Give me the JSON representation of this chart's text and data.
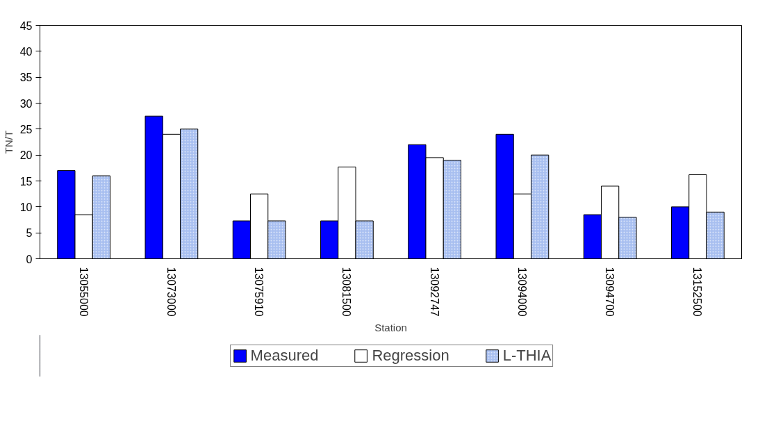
{
  "chart_data": {
    "type": "bar",
    "xlabel": "Station",
    "ylabel": "TN/T",
    "categories": [
      "13055000",
      "13073000",
      "13075910",
      "13081500",
      "13092747",
      "13094000",
      "13094700",
      "13152500"
    ],
    "series": [
      {
        "name": "Measured",
        "color": "#0000ff",
        "values": [
          17,
          27.5,
          7.3,
          7.3,
          22,
          24,
          8.5,
          10
        ]
      },
      {
        "name": "Regression",
        "color": "#ffffff",
        "values": [
          8.5,
          24,
          12.5,
          17.7,
          19.5,
          12.5,
          14,
          16.2
        ]
      },
      {
        "name": "L-THIA",
        "color": "#a8bff0",
        "values": [
          16,
          25,
          7.3,
          7.3,
          19,
          20,
          8,
          9
        ]
      }
    ],
    "ylim": [
      0,
      45
    ],
    "yticks": [
      0,
      5,
      10,
      15,
      20,
      25,
      30,
      35,
      40,
      45
    ],
    "grid": false,
    "legend": "bottom"
  }
}
